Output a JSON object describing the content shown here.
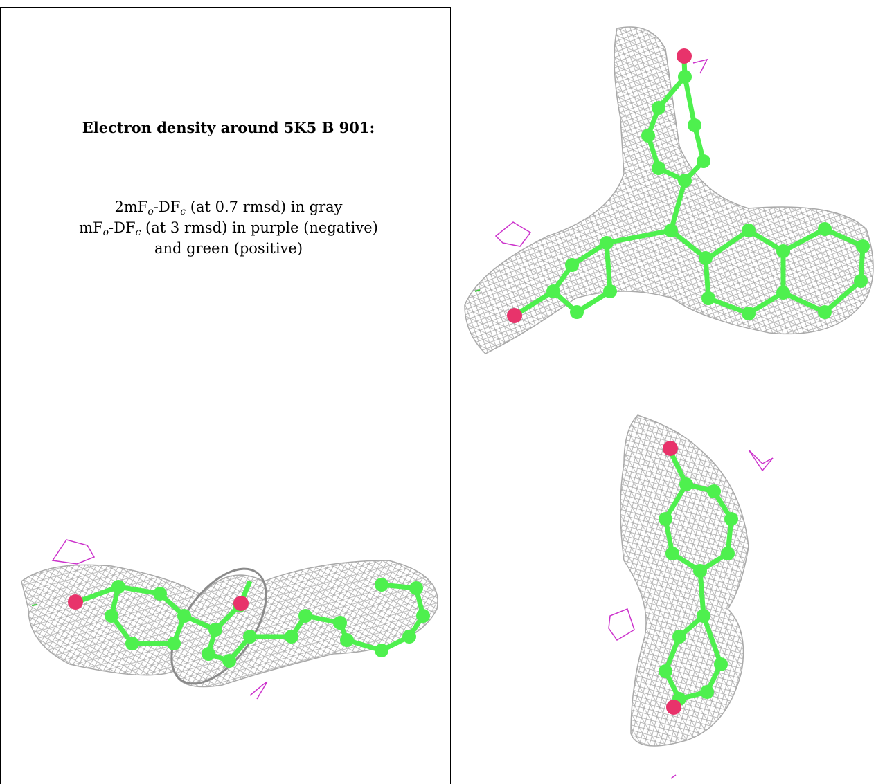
{
  "caption": {
    "title": "Electron density around 5K5 B 901:",
    "line1": {
      "pre": "2mF",
      "sub1": "o",
      "mid": "-DF",
      "sub2": "c",
      "post": " (at 0.7 rmsd) in gray"
    },
    "line2": {
      "pre": "mF",
      "sub1": "o",
      "mid": "-DF",
      "sub2": "c",
      "post": " (at 3 rmsd) in purple (negative)"
    },
    "line3": "and green (positive)"
  },
  "colors": {
    "mesh": "#a9a9a9",
    "carbon": "#4ef04e",
    "oxygen": "#e8336b",
    "negative_density": "#cc33cc",
    "positive_density": "#33cc33"
  }
}
